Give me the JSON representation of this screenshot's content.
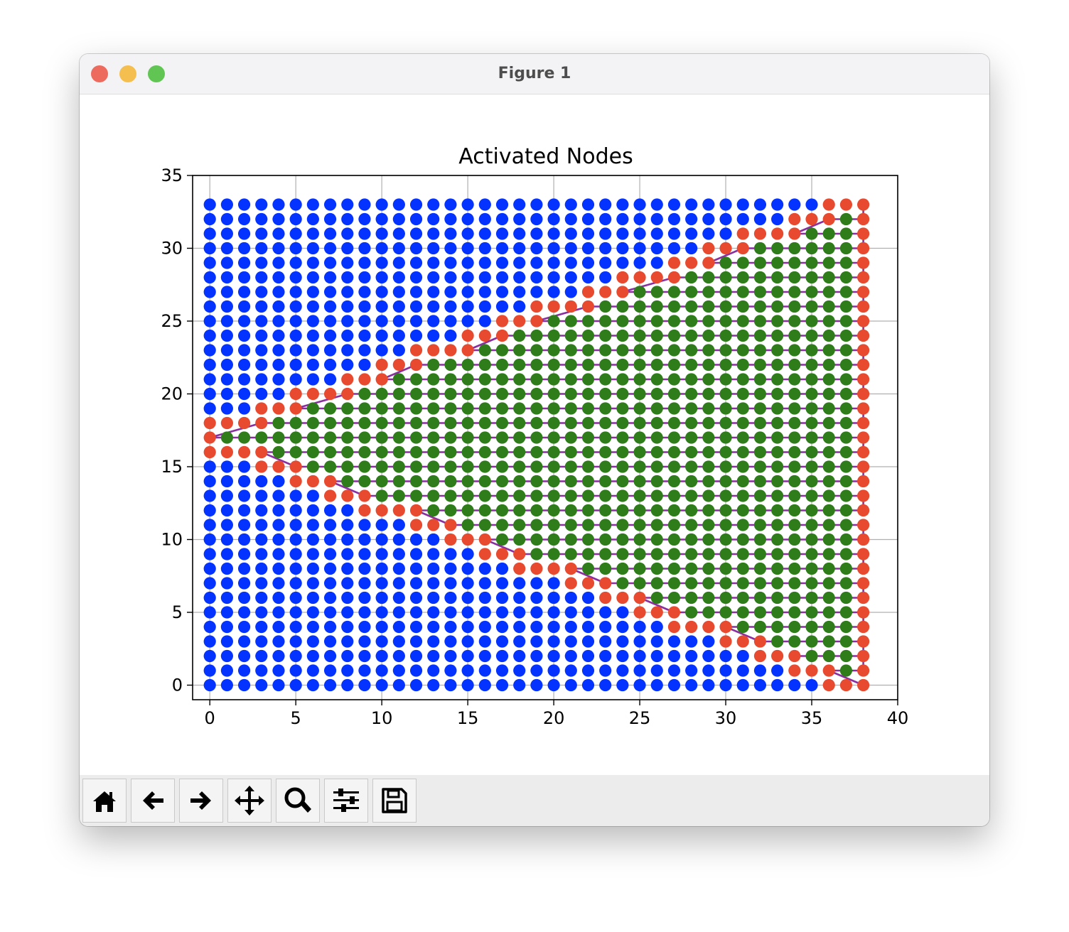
{
  "window": {
    "title": "Figure 1",
    "traffic_colors": {
      "close": "#ed6a5e",
      "minimize": "#f5bf4f",
      "zoom": "#61c554"
    }
  },
  "toolbar": {
    "buttons": [
      {
        "name": "home-button",
        "icon": "home-icon"
      },
      {
        "name": "back-button",
        "icon": "arrow-left-icon"
      },
      {
        "name": "forward-button",
        "icon": "arrow-right-icon"
      },
      {
        "name": "pan-button",
        "icon": "move-icon"
      },
      {
        "name": "zoom-button",
        "icon": "magnifier-icon"
      },
      {
        "name": "subplots-button",
        "icon": "sliders-icon"
      },
      {
        "name": "save-button",
        "icon": "floppy-disk-icon"
      }
    ]
  },
  "chart_data": {
    "type": "scatter",
    "title": "Activated Nodes",
    "xlabel": "",
    "ylabel": "",
    "xlim": [
      -1,
      40
    ],
    "ylim": [
      -1,
      35
    ],
    "xticks": [
      0,
      5,
      10,
      15,
      20,
      25,
      30,
      35,
      40
    ],
    "yticks": [
      0,
      5,
      10,
      15,
      20,
      25,
      30,
      35
    ],
    "grid": true,
    "grid_size": {
      "columns": 39,
      "rows": 34
    },
    "colors": {
      "inactive": "#0433ff",
      "interior": "#2e7d1a",
      "boundary": "#e84a2f",
      "path": "#8a2fa0"
    },
    "boundary_start_column_by_row": [
      38,
      36,
      34,
      32,
      30,
      27,
      25,
      23,
      21,
      18,
      16,
      14,
      12,
      9,
      7,
      5,
      3,
      0,
      3,
      5,
      8,
      10,
      12,
      15,
      17,
      19,
      22,
      24,
      27,
      29,
      31,
      34,
      36,
      38
    ],
    "path_vertices": [
      [
        38,
        0
      ],
      [
        36,
        1
      ],
      [
        38,
        1
      ],
      [
        38,
        2
      ],
      [
        34,
        2
      ],
      [
        38,
        2
      ],
      [
        38,
        3
      ],
      [
        32,
        3
      ],
      [
        30,
        4
      ],
      [
        38,
        4
      ],
      [
        38,
        5
      ],
      [
        27,
        5
      ],
      [
        25,
        6
      ],
      [
        38,
        6
      ],
      [
        38,
        7
      ],
      [
        23,
        7
      ],
      [
        21,
        8
      ],
      [
        38,
        8
      ],
      [
        38,
        9
      ],
      [
        18,
        9
      ],
      [
        16,
        10
      ],
      [
        38,
        10
      ],
      [
        38,
        11
      ],
      [
        14,
        11
      ],
      [
        12,
        12
      ],
      [
        38,
        12
      ],
      [
        38,
        13
      ],
      [
        9,
        13
      ],
      [
        7,
        14
      ],
      [
        38,
        14
      ],
      [
        38,
        15
      ],
      [
        5,
        15
      ],
      [
        3,
        16
      ],
      [
        38,
        16
      ],
      [
        38,
        17
      ],
      [
        0,
        17
      ],
      [
        3,
        18
      ],
      [
        38,
        18
      ],
      [
        38,
        19
      ],
      [
        5,
        19
      ],
      [
        8,
        20
      ],
      [
        38,
        20
      ],
      [
        38,
        21
      ],
      [
        10,
        21
      ],
      [
        12,
        22
      ],
      [
        38,
        22
      ],
      [
        38,
        23
      ],
      [
        15,
        23
      ],
      [
        17,
        24
      ],
      [
        38,
        24
      ],
      [
        38,
        25
      ],
      [
        19,
        25
      ],
      [
        22,
        26
      ],
      [
        38,
        26
      ],
      [
        38,
        27
      ],
      [
        24,
        27
      ],
      [
        27,
        28
      ],
      [
        38,
        28
      ],
      [
        38,
        29
      ],
      [
        29,
        29
      ],
      [
        31,
        30
      ],
      [
        38,
        30
      ],
      [
        38,
        31
      ],
      [
        34,
        31
      ],
      [
        36,
        32
      ],
      [
        38,
        32
      ],
      [
        38,
        33
      ]
    ]
  }
}
